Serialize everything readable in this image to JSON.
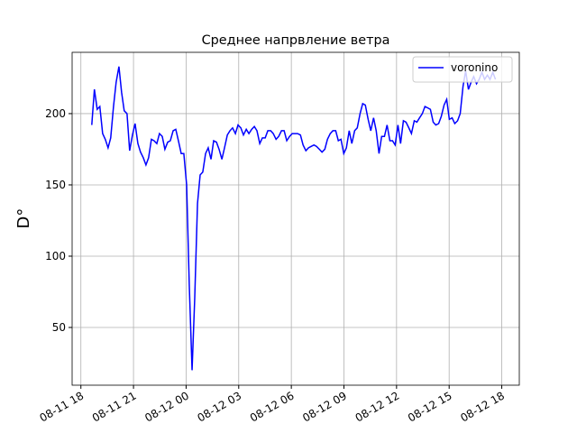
{
  "chart_data": {
    "type": "line",
    "title": "Среднее напрвление ветра",
    "y_label": "D°",
    "x": [
      18.62,
      18.77,
      18.93,
      19.08,
      19.24,
      19.39,
      19.55,
      19.7,
      19.86,
      20.01,
      20.17,
      20.32,
      20.47,
      20.63,
      20.78,
      20.94,
      21.09,
      21.25,
      21.4,
      21.56,
      21.71,
      21.86,
      22.02,
      22.17,
      22.33,
      22.48,
      22.64,
      22.79,
      22.95,
      23.1,
      23.26,
      23.41,
      23.56,
      23.72,
      23.87,
      24.03,
      24.18,
      24.34,
      24.49,
      24.65,
      24.8,
      24.95,
      25.11,
      25.26,
      25.42,
      25.57,
      25.73,
      25.88,
      26.04,
      26.19,
      26.35,
      26.5,
      26.65,
      26.81,
      26.96,
      27.12,
      27.27,
      27.43,
      27.58,
      27.74,
      27.89,
      28.04,
      28.2,
      28.35,
      28.51,
      28.66,
      28.82,
      28.97,
      29.13,
      29.28,
      29.44,
      29.59,
      29.74,
      29.9,
      30.05,
      30.21,
      30.36,
      30.52,
      30.67,
      30.83,
      30.98,
      31.13,
      31.29,
      31.44,
      31.6,
      31.75,
      31.91,
      32.06,
      32.22,
      32.37,
      32.53,
      32.68,
      32.83,
      32.99,
      33.14,
      33.3,
      33.45,
      33.61,
      33.76,
      33.92,
      34.07,
      34.22,
      34.38,
      34.53,
      34.69,
      34.84,
      35.0,
      35.15,
      35.31,
      35.46,
      35.62,
      35.77,
      35.92,
      36.08,
      36.23,
      36.39,
      36.54,
      36.7,
      36.85,
      37.01,
      37.16,
      37.31,
      37.47,
      37.62,
      37.78,
      37.93,
      38.09,
      38.24,
      38.4,
      38.55,
      38.71,
      38.86,
      39.01,
      39.17,
      39.32,
      39.48,
      39.63,
      39.79,
      39.94,
      40.1,
      40.25,
      40.4,
      40.56,
      40.71,
      40.87,
      41.02,
      41.18,
      41.33,
      41.49,
      41.64
    ],
    "series": [
      {
        "name": "voronino",
        "color": "#0000ff",
        "values": [
          192,
          217,
          203,
          205,
          186,
          182,
          176,
          183,
          205,
          222,
          233,
          215,
          202,
          200,
          174,
          185,
          193,
          179,
          173,
          169,
          164,
          169,
          182,
          181,
          179,
          186,
          184,
          175,
          180,
          181,
          188,
          189,
          181,
          172,
          172,
          150,
          80,
          20,
          70,
          137,
          157,
          159,
          172,
          176,
          168,
          181,
          180,
          175,
          168,
          176,
          185,
          188,
          190,
          186,
          192,
          190,
          185,
          189,
          186,
          189,
          191,
          188,
          179,
          183,
          183,
          188,
          188,
          186,
          182,
          184,
          188,
          188,
          181,
          184,
          186,
          186,
          186,
          185,
          178,
          174,
          176,
          177,
          178,
          177,
          175,
          173,
          175,
          182,
          186,
          188,
          188,
          181,
          182,
          172,
          176,
          188,
          179,
          188,
          190,
          200,
          207,
          206,
          196,
          188,
          197,
          188,
          172,
          184,
          184,
          192,
          181,
          181,
          178,
          192,
          179,
          195,
          194,
          190,
          186,
          195,
          194,
          197,
          200,
          205,
          204,
          203,
          194,
          192,
          193,
          198,
          206,
          210,
          196,
          197,
          193,
          195,
          200,
          219,
          230,
          217,
          222,
          226,
          221,
          224,
          229,
          224,
          227,
          224,
          229,
          224
        ]
      }
    ],
    "xlim": [
      17.5,
      43.0
    ],
    "xticks": [
      {
        "value": 18,
        "label": "08-11 18"
      },
      {
        "value": 21,
        "label": "08-11 21"
      },
      {
        "value": 24,
        "label": "08-12 00"
      },
      {
        "value": 27,
        "label": "08-12 03"
      },
      {
        "value": 30,
        "label": "08-12 06"
      },
      {
        "value": 33,
        "label": "08-12 09"
      },
      {
        "value": 36,
        "label": "08-12 12"
      },
      {
        "value": 39,
        "label": "08-12 15"
      },
      {
        "value": 42,
        "label": "08-12 18"
      }
    ],
    "ylim": [
      9.5,
      243
    ],
    "yticks": [
      50,
      100,
      150,
      200
    ],
    "grid": true,
    "legend": "upper right"
  }
}
